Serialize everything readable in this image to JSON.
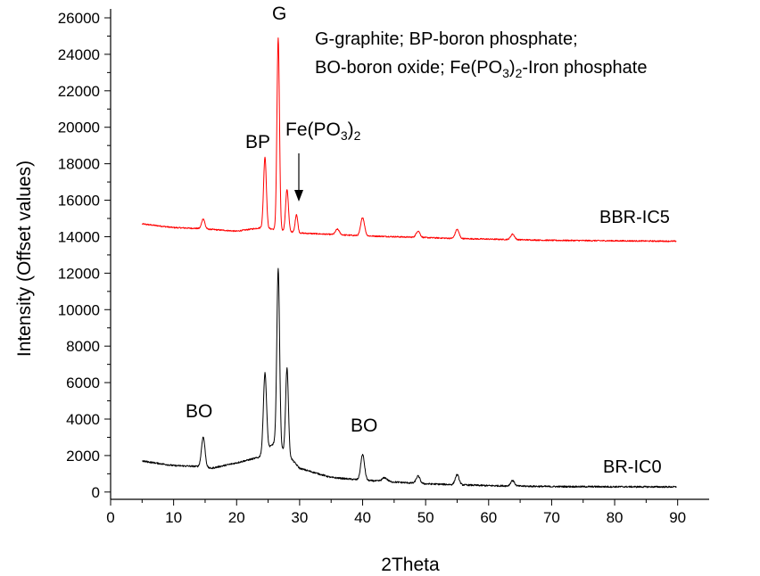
{
  "chart_data": {
    "type": "line",
    "xlabel": "2Theta",
    "ylabel": "Intensity (Offset values)",
    "xlim": [
      0,
      95
    ],
    "ylim": [
      -400,
      26000
    ],
    "xticks": [
      0,
      10,
      20,
      30,
      40,
      50,
      60,
      70,
      80,
      90
    ],
    "yticks": [
      0,
      2000,
      4000,
      6000,
      8000,
      10000,
      12000,
      14000,
      16000,
      18000,
      20000,
      22000,
      24000,
      26000
    ],
    "grid": false,
    "legend_text": {
      "line1": "G-graphite; BP-boron phosphate;",
      "line2_pre": "BO-boron oxide; Fe(PO",
      "line2_sub1": "3",
      "line2_mid": ")",
      "line2_sub2": "2",
      "line2_post": "-Iron phosphate"
    },
    "annotations": {
      "g": "G",
      "bp": "BP",
      "fe_pre": "Fe(PO",
      "fe_sub1": "3",
      "fe_mid": ")",
      "fe_sub2": "2",
      "bo_left": "BO",
      "bo_right": "BO"
    },
    "series": [
      {
        "name": "BBR-IC5",
        "color": "#ff0000",
        "baseline": [
          [
            5,
            14700
          ],
          [
            10,
            14500
          ],
          [
            14,
            14450
          ],
          [
            20,
            14300
          ],
          [
            24,
            14500
          ],
          [
            30,
            14200
          ],
          [
            40,
            14050
          ],
          [
            55,
            13900
          ],
          [
            70,
            13800
          ],
          [
            90,
            13750
          ]
        ],
        "peaks": [
          {
            "x": 14.7,
            "height": 550,
            "width": 0.25
          },
          {
            "x": 24.5,
            "height": 3900,
            "width": 0.22
          },
          {
            "x": 26.6,
            "height": 10500,
            "width": 0.2
          },
          {
            "x": 28.0,
            "height": 2300,
            "width": 0.22
          },
          {
            "x": 29.5,
            "height": 1000,
            "width": 0.2
          },
          {
            "x": 36.0,
            "height": 300,
            "width": 0.3
          },
          {
            "x": 40.0,
            "height": 1000,
            "width": 0.3
          },
          {
            "x": 48.8,
            "height": 350,
            "width": 0.3
          },
          {
            "x": 55.0,
            "height": 500,
            "width": 0.3
          },
          {
            "x": 63.8,
            "height": 300,
            "width": 0.3
          }
        ]
      },
      {
        "name": "BR-IC0",
        "color": "#000000",
        "baseline": [
          [
            5,
            1700
          ],
          [
            10,
            1450
          ],
          [
            14,
            1400
          ],
          [
            16,
            1300
          ],
          [
            20,
            1600
          ],
          [
            23.5,
            1900
          ],
          [
            26,
            2700
          ],
          [
            28,
            2100
          ],
          [
            30,
            1300
          ],
          [
            35,
            800
          ],
          [
            40,
            650
          ],
          [
            50,
            450
          ],
          [
            60,
            350
          ],
          [
            70,
            300
          ],
          [
            90,
            280
          ]
        ],
        "peaks": [
          {
            "x": 14.7,
            "height": 1650,
            "width": 0.28
          },
          {
            "x": 24.5,
            "height": 4300,
            "width": 0.25
          },
          {
            "x": 26.6,
            "height": 9700,
            "width": 0.22
          },
          {
            "x": 28.0,
            "height": 4700,
            "width": 0.22
          },
          {
            "x": 40.0,
            "height": 1400,
            "width": 0.3
          },
          {
            "x": 43.5,
            "height": 200,
            "width": 0.4
          },
          {
            "x": 48.8,
            "height": 400,
            "width": 0.3
          },
          {
            "x": 55.0,
            "height": 550,
            "width": 0.3
          },
          {
            "x": 63.8,
            "height": 300,
            "width": 0.3
          }
        ]
      }
    ]
  }
}
